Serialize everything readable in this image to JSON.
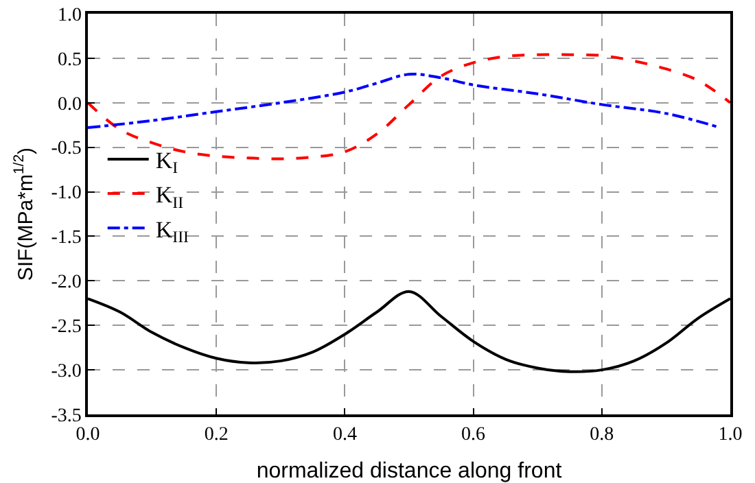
{
  "chart_data": {
    "type": "line",
    "xlabel": "normalized distance along front",
    "ylabel": "SIF(MPa*m$^{1/2}$)",
    "x": [
      0,
      0.05,
      0.1,
      0.15,
      0.2,
      0.25,
      0.3,
      0.35,
      0.4,
      0.45,
      0.5,
      0.55,
      0.6,
      0.65,
      0.7,
      0.75,
      0.8,
      0.85,
      0.9,
      0.95,
      1.0
    ],
    "series": [
      {
        "name": "K$_{I}$",
        "color": "#000000",
        "line_style": "solid",
        "values": [
          -2.2,
          -2.35,
          -2.58,
          -2.75,
          -2.87,
          -2.92,
          -2.9,
          -2.8,
          -2.6,
          -2.35,
          -2.12,
          -2.4,
          -2.68,
          -2.88,
          -2.98,
          -3.02,
          -3.0,
          -2.9,
          -2.7,
          -2.42,
          -2.2
        ]
      },
      {
        "name": "K$_{II}$",
        "color": "#ff0000",
        "line_style": "dashed",
        "values": [
          0,
          -0.3,
          -0.45,
          -0.55,
          -0.6,
          -0.62,
          -0.63,
          -0.61,
          -0.55,
          -0.35,
          -0.02,
          0.3,
          0.45,
          0.52,
          0.54,
          0.54,
          0.53,
          0.47,
          0.38,
          0.25,
          0
        ]
      },
      {
        "name": "K$_{III}$",
        "color": "#0000ff",
        "line_style": "dashdot",
        "x": [
          0,
          0.1,
          0.2,
          0.3,
          0.4,
          0.45,
          0.5,
          0.55,
          0.6,
          0.7,
          0.8,
          0.9,
          0.98
        ],
        "values": [
          -0.28,
          -0.2,
          -0.1,
          0.0,
          0.12,
          0.22,
          0.32,
          0.28,
          0.2,
          0.1,
          -0.02,
          -0.12,
          -0.27
        ]
      }
    ],
    "xlim": [
      0,
      1
    ],
    "xticks": [
      {
        "value": 0,
        "label": "0.0"
      },
      0.2,
      0.4,
      0.6,
      0.8,
      {
        "value": 1,
        "label": "1.0"
      }
    ],
    "ylim": [
      -3.5,
      1.0
    ],
    "yticks": [
      -3.5,
      {
        "value": -3,
        "label": "-3.0"
      },
      -2.5,
      {
        "value": -2,
        "label": "-2.0"
      },
      -1.5,
      {
        "value": -1,
        "label": "-1.0"
      },
      -0.5,
      {
        "value": 0,
        "label": "0.0"
      },
      0.5,
      {
        "value": 1,
        "label": "1.0"
      }
    ],
    "grid": true,
    "legend": "left",
    "marker": "none"
  }
}
